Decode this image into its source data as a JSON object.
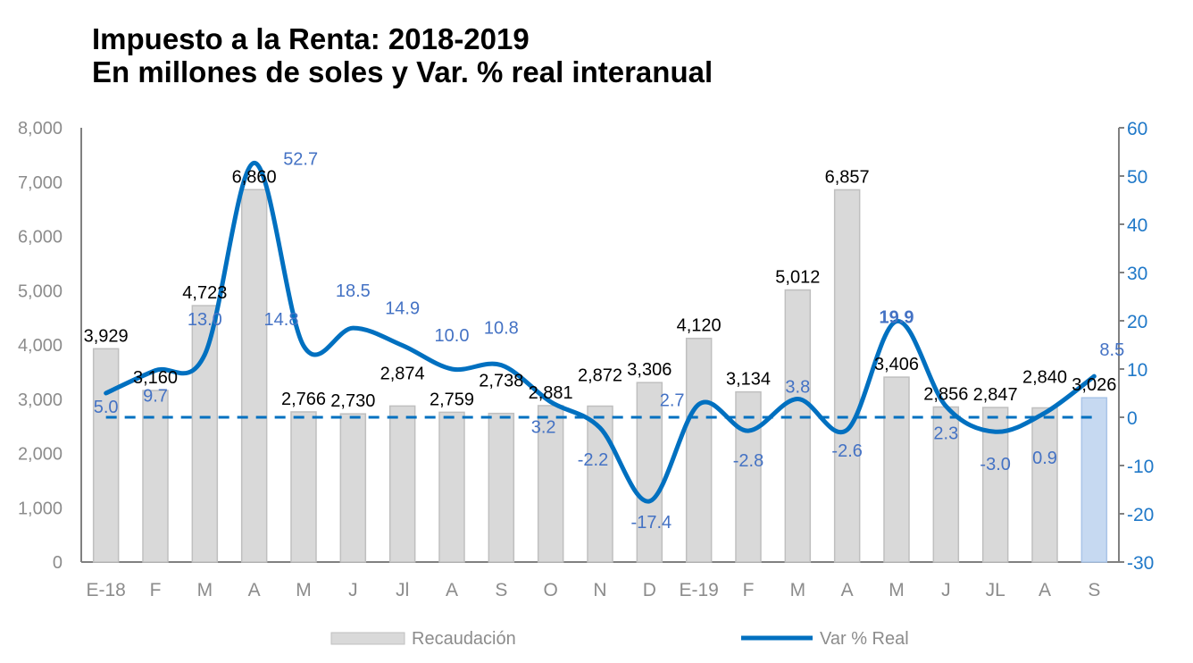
{
  "chart_data": {
    "type": "bar+line",
    "title": "Impuesto a la Renta: 2018-2019",
    "subtitle": "En millones de soles y Var. % real interanual",
    "categories": [
      "E-18",
      "F",
      "M",
      "A",
      "M",
      "J",
      "Jl",
      "A",
      "S",
      "O",
      "N",
      "D",
      "E-19",
      "F",
      "M",
      "A",
      "M",
      "J",
      "JL",
      "A",
      "S"
    ],
    "series": [
      {
        "name": "Recaudación",
        "type": "bar",
        "axis": "left",
        "values": [
          3929,
          3160,
          4723,
          6860,
          2766,
          2730,
          2874,
          2759,
          2738,
          2881,
          2872,
          3306,
          4120,
          3134,
          5012,
          6857,
          3406,
          2856,
          2847,
          2840,
          3026
        ],
        "labels": [
          "3,929",
          "3,160",
          "4,723",
          "6,860",
          "2,766",
          "2,730",
          "2,874",
          "2,759",
          "2,738",
          "2,881",
          "2,872",
          "3,306",
          "4,120",
          "3,134",
          "5,012",
          "6,857",
          "3,406",
          "2,856",
          "2,847",
          "2,840",
          "3,026"
        ]
      },
      {
        "name": "Var % Real",
        "type": "line",
        "axis": "right",
        "values": [
          5.0,
          9.7,
          13.0,
          52.7,
          14.8,
          18.5,
          14.9,
          10.0,
          10.8,
          3.2,
          -2.2,
          -17.4,
          2.7,
          -2.8,
          3.8,
          -2.6,
          19.9,
          2.3,
          -3.0,
          0.9,
          8.5
        ],
        "labels": [
          "5.0",
          "9.7",
          "13.0",
          "52.7",
          "14.8",
          "18.5",
          "14.9",
          "10.0",
          "10.8",
          "3.2",
          "-2.2",
          "-17.4",
          "2.7",
          "-2.8",
          "3.8",
          "-2.6",
          "19.9",
          "2.3",
          "-3.0",
          "0.9",
          "8.5"
        ]
      }
    ],
    "y_left": {
      "range": [
        0,
        8000
      ],
      "ticks": [
        "0",
        "1,000",
        "2,000",
        "3,000",
        "4,000",
        "5,000",
        "6,000",
        "7,000",
        "8,000"
      ]
    },
    "y_right": {
      "range": [
        -30,
        60
      ],
      "ticks": [
        "-30",
        "-20",
        "-10",
        "0",
        "10",
        "20",
        "30",
        "40",
        "50",
        "60"
      ]
    },
    "zero_reference_line": "dashed",
    "highlighted_bar": "S",
    "grid": false,
    "legend": "bottom",
    "colors": {
      "bar": "#D9D9D9",
      "bar_border": "#BFBFBF",
      "bar_highlight": "#C6D9F1",
      "line": "#0070C0",
      "line_labels": "#4472C4",
      "right_axis": "#1F78C8",
      "axis_text": "#8C8C8C"
    }
  }
}
